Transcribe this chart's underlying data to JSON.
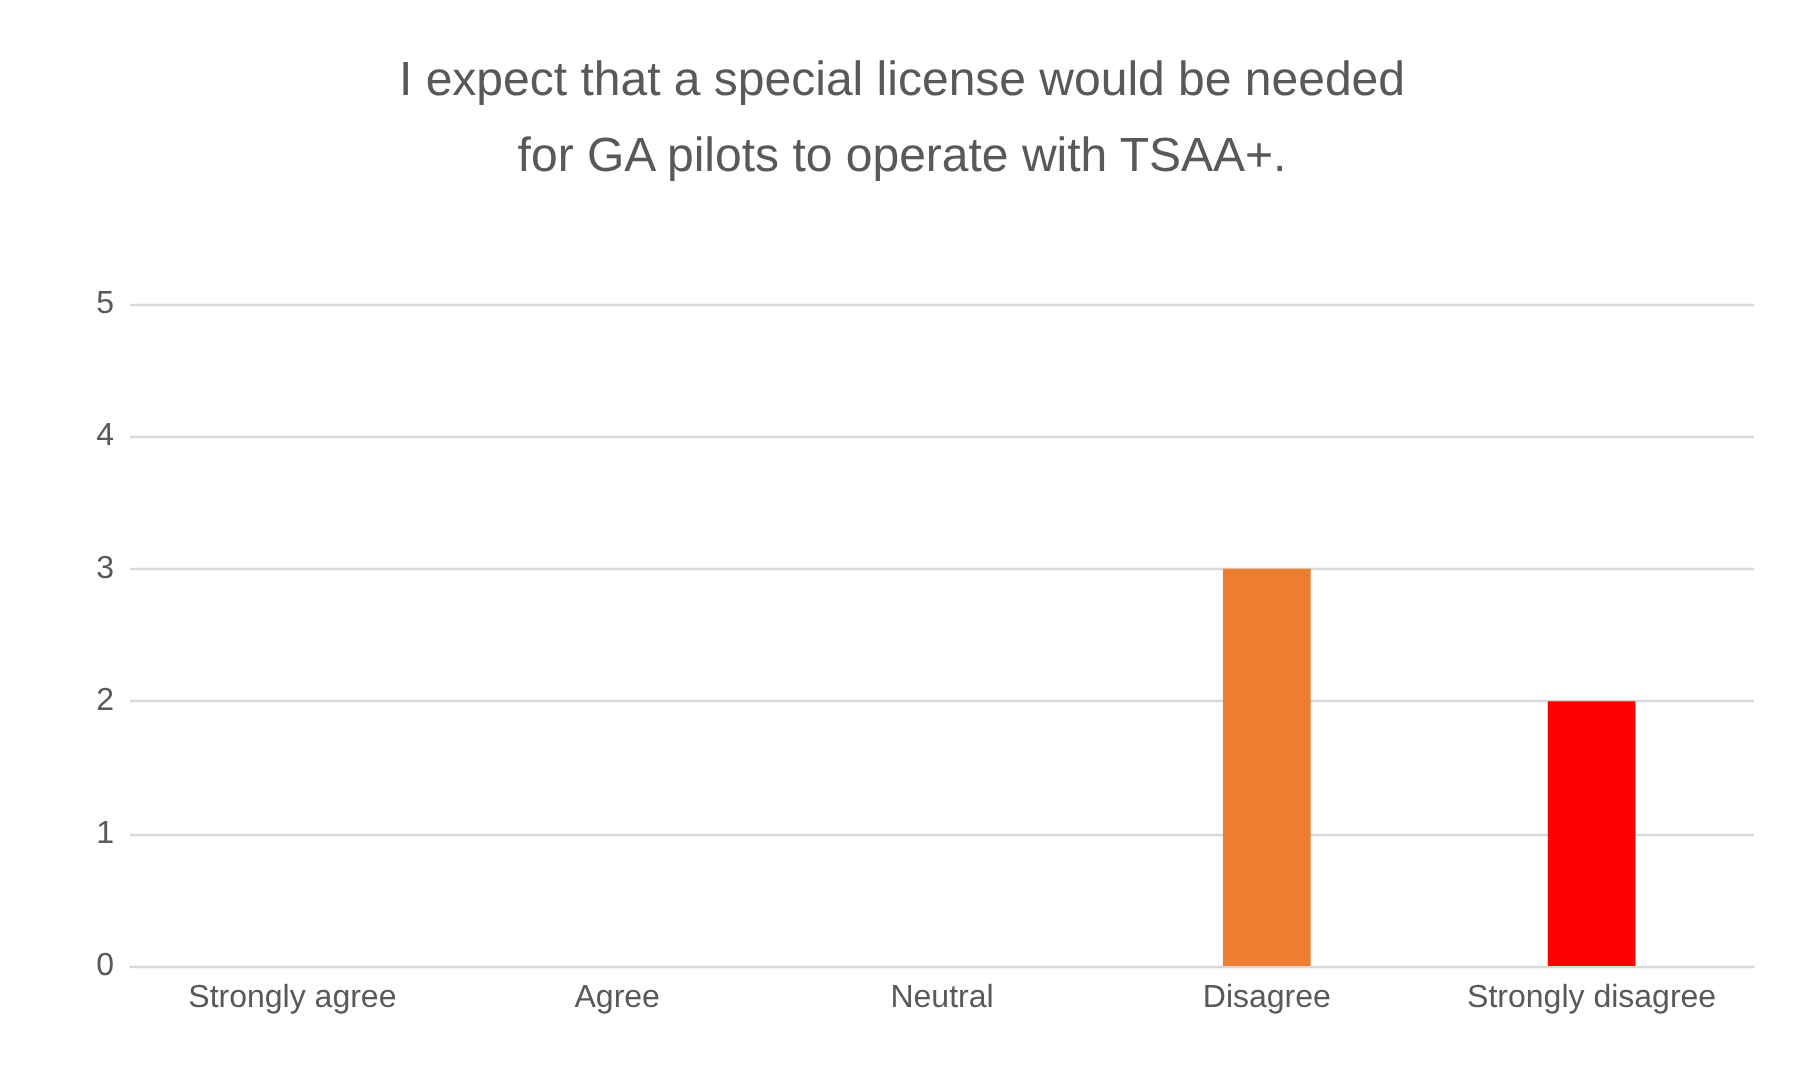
{
  "chart_data": {
    "type": "bar",
    "title": "I expect that a special license would be needed\nfor GA pilots to operate with TSAA+.",
    "categories": [
      "Strongly agree",
      "Agree",
      "Neutral",
      "Disagree",
      "Strongly disagree"
    ],
    "values": [
      0,
      0,
      0,
      3,
      2
    ],
    "colors": [
      "#4472c4",
      "#a5a5a5",
      "#ffc000",
      "#ed7d31",
      "#ff0000"
    ],
    "ylim": [
      0,
      5
    ],
    "yticks": [
      0,
      1,
      2,
      3,
      4,
      5
    ],
    "grid": "y"
  }
}
